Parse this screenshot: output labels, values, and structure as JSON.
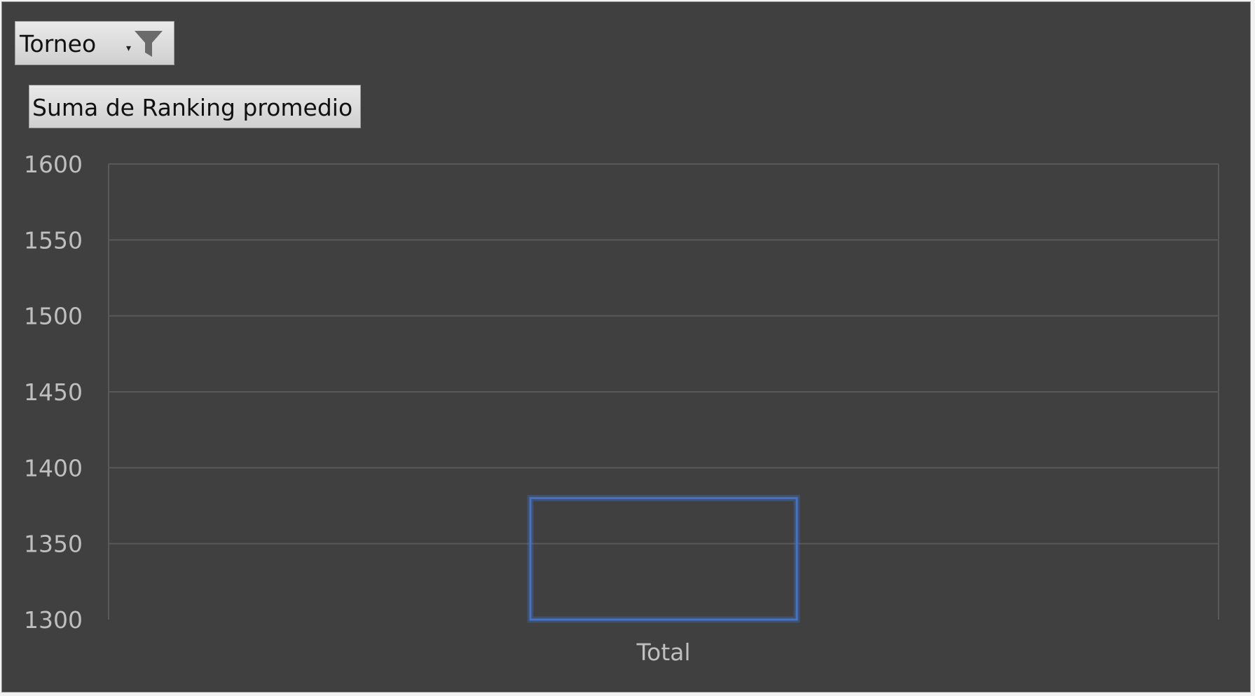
{
  "filter_button": {
    "label": "Torneo",
    "icon": "funnel-filter-icon",
    "arrow_icon": "chevron-down-icon"
  },
  "value_field_button": {
    "label": "Suma de Ranking promedio"
  },
  "colors": {
    "background": "#404040",
    "gridline": "#595959",
    "axis_text": "#bfbfbf",
    "selection_outline": "#4472c4"
  },
  "chart_data": {
    "type": "bar",
    "title": "",
    "xlabel": "",
    "ylabel": "",
    "categories": [
      "Total"
    ],
    "series": [
      {
        "values": [
          1380
        ]
      }
    ],
    "ylim": [
      1300,
      1600
    ],
    "yticks": [
      1300,
      1350,
      1400,
      1450,
      1500,
      1550,
      1600
    ],
    "grid": true,
    "legend": "none",
    "bar_style": "no fill, selected with blue outline"
  }
}
